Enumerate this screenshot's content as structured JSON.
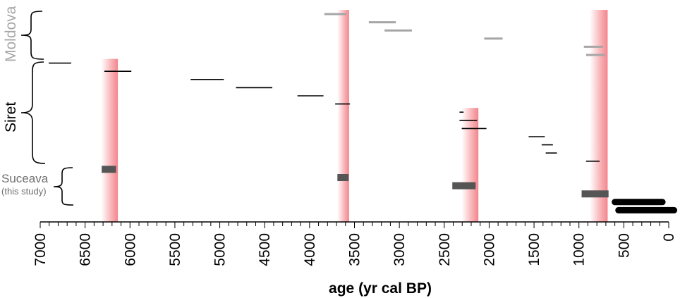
{
  "chart_data": {
    "type": "range-timeline",
    "xlabel": "age (yr cal BP)",
    "xlim": [
      7000,
      0
    ],
    "xticks": [
      7000,
      6500,
      6000,
      5500,
      5000,
      4500,
      4000,
      3500,
      3000,
      2500,
      2000,
      1500,
      1000,
      500,
      0
    ],
    "minor_tick_step": 100,
    "groups": [
      {
        "name": "Moldova",
        "color": "#a6a6a6"
      },
      {
        "name": "Siret",
        "color": "#000000"
      },
      {
        "name": "Suceava",
        "note": "(this study)",
        "color": "#555555"
      }
    ],
    "highlight_bands": [
      {
        "from": 6320,
        "to": 6135,
        "top_row": 6
      },
      {
        "from": 3690,
        "to": 3560,
        "top_row": 0
      },
      {
        "from": 2305,
        "to": 2120,
        "top_row": 12
      },
      {
        "from": 880,
        "to": 680,
        "top_row": 0
      }
    ],
    "ranges": [
      {
        "group": "Moldova",
        "from": 3835,
        "to": 3590
      },
      {
        "group": "Moldova",
        "from": 3340,
        "to": 3040
      },
      {
        "group": "Moldova",
        "from": 3165,
        "to": 2860
      },
      {
        "group": "Moldova",
        "from": 2055,
        "to": 1850
      },
      {
        "group": "Moldova",
        "from": 945,
        "to": 730
      },
      {
        "group": "Moldova",
        "from": 920,
        "to": 710
      },
      {
        "group": "Siret",
        "from": 6905,
        "to": 6655
      },
      {
        "group": "Siret",
        "from": 6285,
        "to": 5985
      },
      {
        "group": "Siret",
        "from": 5325,
        "to": 4955
      },
      {
        "group": "Siret",
        "from": 4820,
        "to": 4415
      },
      {
        "group": "Siret",
        "from": 4135,
        "to": 3845
      },
      {
        "group": "Siret",
        "from": 3715,
        "to": 3550
      },
      {
        "group": "Siret",
        "from": 2330,
        "to": 2285
      },
      {
        "group": "Siret",
        "from": 2330,
        "to": 2135
      },
      {
        "group": "Siret",
        "from": 2305,
        "to": 2030
      },
      {
        "group": "Siret",
        "from": 1560,
        "to": 1380
      },
      {
        "group": "Siret",
        "from": 1415,
        "to": 1290
      },
      {
        "group": "Siret",
        "from": 1370,
        "to": 1245
      },
      {
        "group": "Siret",
        "from": 920,
        "to": 770
      },
      {
        "group": "Suceava",
        "from": 6315,
        "to": 6155
      },
      {
        "group": "Suceava",
        "from": 3690,
        "to": 3565
      },
      {
        "group": "Suceava",
        "from": 2410,
        "to": 2150
      },
      {
        "group": "Suceava",
        "from": 970,
        "to": 670
      },
      {
        "group": "Suceava-recent",
        "from": 600,
        "to": 70
      },
      {
        "group": "Suceava-recent",
        "from": 560,
        "to": -60
      }
    ]
  }
}
